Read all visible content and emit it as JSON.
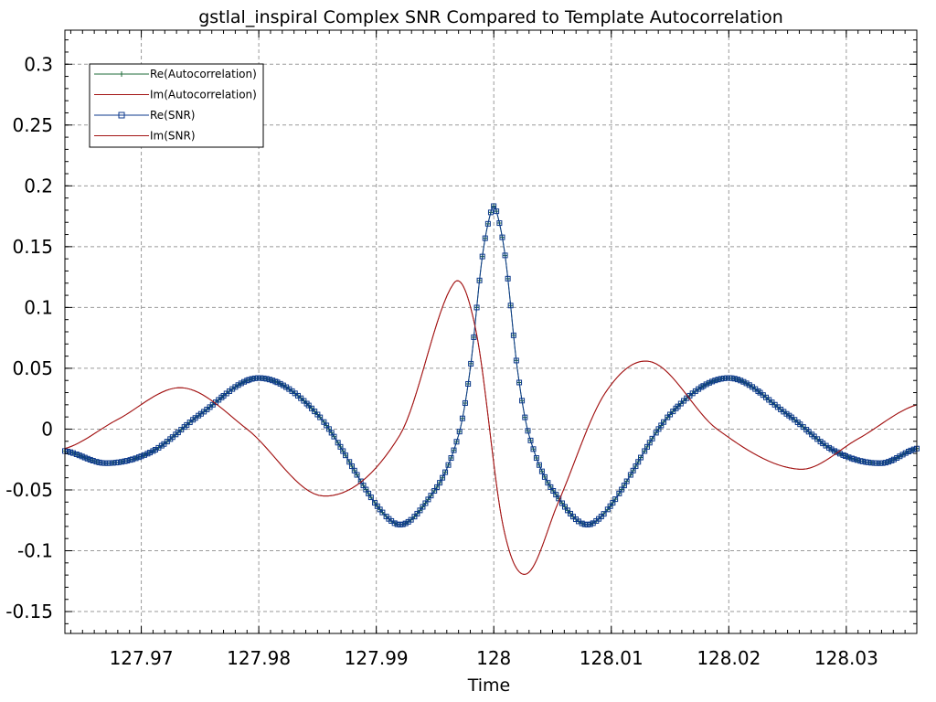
{
  "chart_data": {
    "type": "line",
    "title": "gstlal_inspiral Complex SNR Compared to Template Autocorrelation",
    "xlabel": "Time",
    "ylabel": "",
    "xlim": [
      127.9635,
      128.036
    ],
    "ylim": [
      -0.168,
      0.328
    ],
    "x_ticks": [
      127.97,
      127.98,
      127.99,
      128,
      128.01,
      128.02,
      128.03
    ],
    "x_tick_labels": [
      "127.97",
      "127.98",
      "127.99",
      "128",
      "128.01",
      "128.02",
      "128.03"
    ],
    "y_ticks": [
      -0.15,
      -0.1,
      -0.05,
      0,
      0.05,
      0.1,
      0.15,
      0.2,
      0.25,
      0.3
    ],
    "y_tick_labels": [
      "-0.15",
      "-0.1",
      "-0.05",
      "0",
      "0.05",
      "0.1",
      "0.15",
      "0.2",
      "0.25",
      "0.3"
    ],
    "grid": true,
    "legend_position": "top-left",
    "series": [
      {
        "name": "Re(Autocorrelation)",
        "color": "#1f6b3a",
        "marker": "plus",
        "x": [
          127.9635,
          127.967,
          127.971,
          127.975,
          127.98,
          127.985,
          127.9915,
          127.995,
          127.997,
          127.998,
          127.999,
          127.9998,
          128.0002,
          128.001,
          128.002,
          128.003,
          128.005,
          128.0085,
          128.015,
          128.02,
          128.025,
          128.029,
          128.033,
          128.036
        ],
        "y": [
          -0.018,
          -0.028,
          -0.018,
          0.012,
          0.042,
          0.012,
          -0.077,
          -0.05,
          -0.005,
          0.05,
          0.14,
          0.18,
          0.18,
          0.14,
          0.05,
          -0.005,
          -0.05,
          -0.077,
          0.012,
          0.042,
          0.012,
          -0.018,
          -0.028,
          -0.016
        ]
      },
      {
        "name": "Im(Autocorrelation)",
        "color": "#a31515",
        "marker": "none",
        "x": [
          127.9635,
          127.968,
          127.9735,
          127.979,
          127.9855,
          127.992,
          127.9966,
          127.9985,
          128.0008,
          128.0028,
          128.0055,
          128.0095,
          128.0135,
          128.019,
          128.026,
          128.031,
          128.036
        ],
        "y": [
          -0.016,
          0.008,
          0.034,
          0.0,
          -0.055,
          -0.005,
          0.12,
          0.08,
          -0.08,
          -0.119,
          -0.06,
          0.03,
          0.055,
          0.0,
          -0.033,
          -0.008,
          0.02
        ]
      },
      {
        "name": "Re(SNR)",
        "color": "#0d3a8c",
        "marker": "square",
        "x": [
          127.9635,
          127.967,
          127.971,
          127.975,
          127.98,
          127.985,
          127.9915,
          127.995,
          127.997,
          127.998,
          127.999,
          127.9998,
          128.0002,
          128.001,
          128.002,
          128.003,
          128.005,
          128.0085,
          128.015,
          128.02,
          128.025,
          128.029,
          128.033,
          128.036
        ],
        "y": [
          -0.018,
          -0.028,
          -0.018,
          0.012,
          0.042,
          0.012,
          -0.077,
          -0.05,
          -0.005,
          0.05,
          0.14,
          0.18,
          0.18,
          0.14,
          0.05,
          -0.005,
          -0.05,
          -0.077,
          0.012,
          0.042,
          0.012,
          -0.018,
          -0.028,
          -0.016
        ]
      },
      {
        "name": "Im(SNR)",
        "color": "#a31515",
        "marker": "none",
        "x": [
          127.9635,
          127.968,
          127.9735,
          127.979,
          127.9855,
          127.992,
          127.9966,
          127.9985,
          128.0008,
          128.0028,
          128.0055,
          128.0095,
          128.0135,
          128.019,
          128.026,
          128.031,
          128.036
        ],
        "y": [
          -0.016,
          0.008,
          0.034,
          0.0,
          -0.055,
          -0.005,
          0.12,
          0.08,
          -0.08,
          -0.119,
          -0.06,
          0.03,
          0.055,
          0.0,
          -0.033,
          -0.008,
          0.02
        ]
      }
    ]
  }
}
